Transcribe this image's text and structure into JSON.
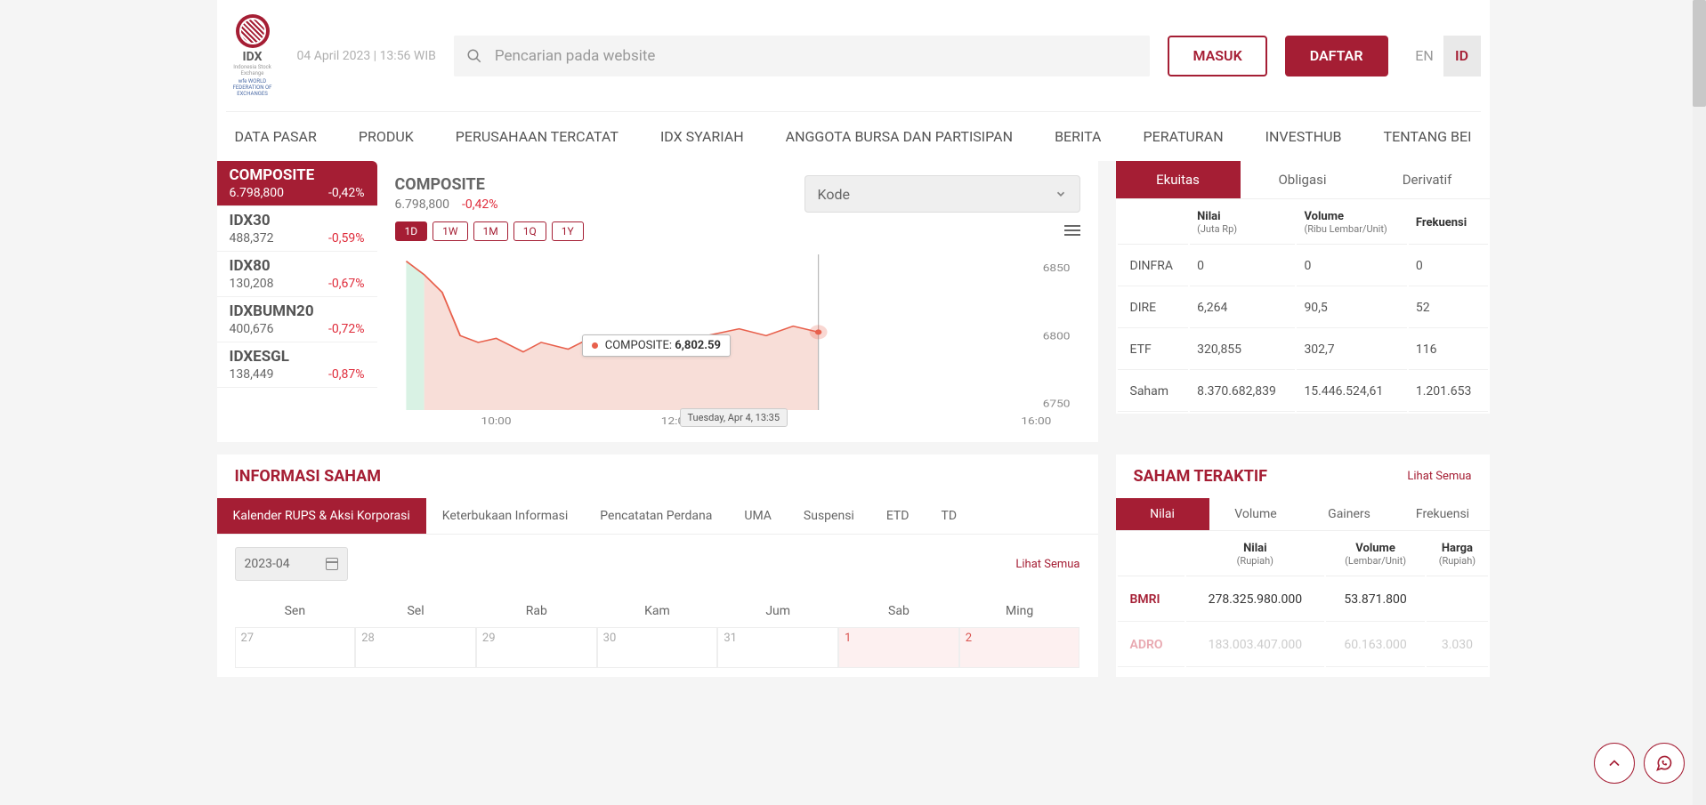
{
  "header": {
    "logo_label": "IDX",
    "logo_sub1": "Indonesia Stock Exchange",
    "logo_sub2": "wfe WORLD FEDERATION OF EXCHANGES",
    "datetime": "04 April 2023  |  13:56 WIB",
    "search_placeholder": "Pencarian pada website",
    "masuk": "MASUK",
    "daftar": "DAFTAR",
    "lang_en": "EN",
    "lang_id": "ID"
  },
  "nav": [
    "DATA PASAR",
    "PRODUK",
    "PERUSAHAAN TERCATAT",
    "IDX SYARIAH",
    "ANGGOTA BURSA DAN PARTISIPAN",
    "BERITA",
    "PERATURAN",
    "INVESTHUB",
    "TENTANG BEI"
  ],
  "indices": [
    {
      "name": "COMPOSITE",
      "value": "6.798,800",
      "change": "-0,42%",
      "active": true
    },
    {
      "name": "IDX30",
      "value": "488,372",
      "change": "-0,59%"
    },
    {
      "name": "IDX80",
      "value": "130,208",
      "change": "-0,67%"
    },
    {
      "name": "IDXBUMN20",
      "value": "400,676",
      "change": "-0,72%"
    },
    {
      "name": "IDXESGL",
      "value": "138,449",
      "change": "-0,87%"
    }
  ],
  "chart": {
    "title": "COMPOSITE",
    "value": "6.798,800",
    "change": "-0,42%",
    "kode_label": "Kode",
    "periods": [
      "1D",
      "1W",
      "1M",
      "1Q",
      "1Y"
    ],
    "active_period": "1D",
    "tooltip_label": "COMPOSITE:",
    "tooltip_value": "6,802.59",
    "time_tip": "Tuesday, Apr 4, 13:35",
    "y_ticks": [
      "6850",
      "6800",
      "6750"
    ],
    "x_ticks": [
      "10:00",
      "12:00",
      "16:00"
    ],
    "colors": {
      "line": "#e8604c",
      "fill": "#f5d0c8",
      "prefill": "#c9ecd8",
      "accent": "#a51e34"
    },
    "type": "line",
    "ylim": [
      6745,
      6860
    ],
    "xlim_hours": [
      9,
      16
    ],
    "series": [
      [
        9.0,
        6855
      ],
      [
        9.1,
        6850
      ],
      [
        9.2,
        6845
      ],
      [
        9.4,
        6832
      ],
      [
        9.6,
        6800
      ],
      [
        9.8,
        6795
      ],
      [
        10.0,
        6798
      ],
      [
        10.3,
        6788
      ],
      [
        10.5,
        6795
      ],
      [
        10.8,
        6790
      ],
      [
        11.1,
        6800
      ],
      [
        11.4,
        6797
      ],
      [
        11.7,
        6800
      ],
      [
        12.2,
        6798
      ],
      [
        12.7,
        6805
      ],
      [
        13.0,
        6800
      ],
      [
        13.3,
        6807
      ],
      [
        13.58,
        6802.59
      ]
    ]
  },
  "market": {
    "tabs": [
      "Ekuitas",
      "Obligasi",
      "Derivatif"
    ],
    "active_tab": "Ekuitas",
    "headers": [
      {
        "t": "",
        "s": ""
      },
      {
        "t": "Nilai",
        "s": "(Juta Rp)"
      },
      {
        "t": "Volume",
        "s": "(Ribu Lembar/Unit)"
      },
      {
        "t": "Frekuensi",
        "s": ""
      }
    ],
    "rows": [
      [
        "DINFRA",
        "0",
        "0",
        "0"
      ],
      [
        "DIRE",
        "6,264",
        "90,5",
        "52"
      ],
      [
        "ETF",
        "320,855",
        "302,7",
        "116"
      ],
      [
        "Saham",
        "8.370.682,839",
        "15.446.524,61",
        "1.201.653"
      ]
    ]
  },
  "info_saham": {
    "title": "INFORMASI SAHAM",
    "tabs": [
      "Kalender RUPS & Aksi Korporasi",
      "Keterbukaan Informasi",
      "Pencatatan Perdana",
      "UMA",
      "Suspensi",
      "ETD",
      "TD"
    ],
    "active_tab": "Kalender RUPS & Aksi Korporasi",
    "date_value": "2023-04",
    "lihat_semua": "Lihat Semua",
    "cal_heads": [
      "Sen",
      "Sel",
      "Rab",
      "Kam",
      "Jum",
      "Sab",
      "Ming"
    ],
    "cal_row": [
      "27",
      "28",
      "29",
      "30",
      "31",
      "1",
      "2"
    ]
  },
  "teraktif": {
    "title": "SAHAM TERAKTIF",
    "lihat_semua": "Lihat Semua",
    "tabs": [
      "Nilai",
      "Volume",
      "Gainers",
      "Frekuensi"
    ],
    "active_tab": "Nilai",
    "headers": [
      {
        "t": "",
        "s": ""
      },
      {
        "t": "Nilai",
        "s": "(Rupiah)"
      },
      {
        "t": "Volume",
        "s": "(Lembar/Unit)"
      },
      {
        "t": "Harga",
        "s": "(Rupiah)"
      }
    ],
    "rows": [
      [
        "BMRI",
        "278.325.980.000",
        "53.871.800",
        ""
      ],
      [
        "ADRO",
        "183.003.407.000",
        "60.163.000",
        "3.030"
      ]
    ]
  }
}
